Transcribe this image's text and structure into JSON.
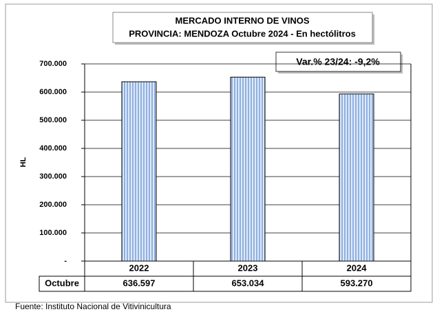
{
  "chart_data": {
    "type": "bar",
    "title": "MERCADO INTERNO DE VINOS",
    "subtitle": "PROVINCIA: MENDOZA Octubre 2024 - En hectólitros",
    "annotation": "Var.% 23/24: -9,2%",
    "y_label": "HL",
    "categories": [
      "2022",
      "2023",
      "2024"
    ],
    "series": [
      {
        "name": "Octubre",
        "color": "#a9c4ea",
        "values": [
          636597,
          653034,
          593270
        ],
        "value_labels": [
          "636.597",
          "653.034",
          "593.270"
        ]
      }
    ],
    "ylim": [
      0,
      700000
    ],
    "yticks": [
      {
        "value": 0,
        "label": "-"
      },
      {
        "value": 100000,
        "label": "100.000"
      },
      {
        "value": 200000,
        "label": "200.000"
      },
      {
        "value": 300000,
        "label": "300.000"
      },
      {
        "value": 400000,
        "label": "400.000"
      },
      {
        "value": 500000,
        "label": "500.000"
      },
      {
        "value": 600000,
        "label": "600.000"
      },
      {
        "value": 700000,
        "label": "700.000"
      }
    ],
    "grid": true,
    "source": "Fuente: Instituto Nacional de Vitivinicultura"
  }
}
